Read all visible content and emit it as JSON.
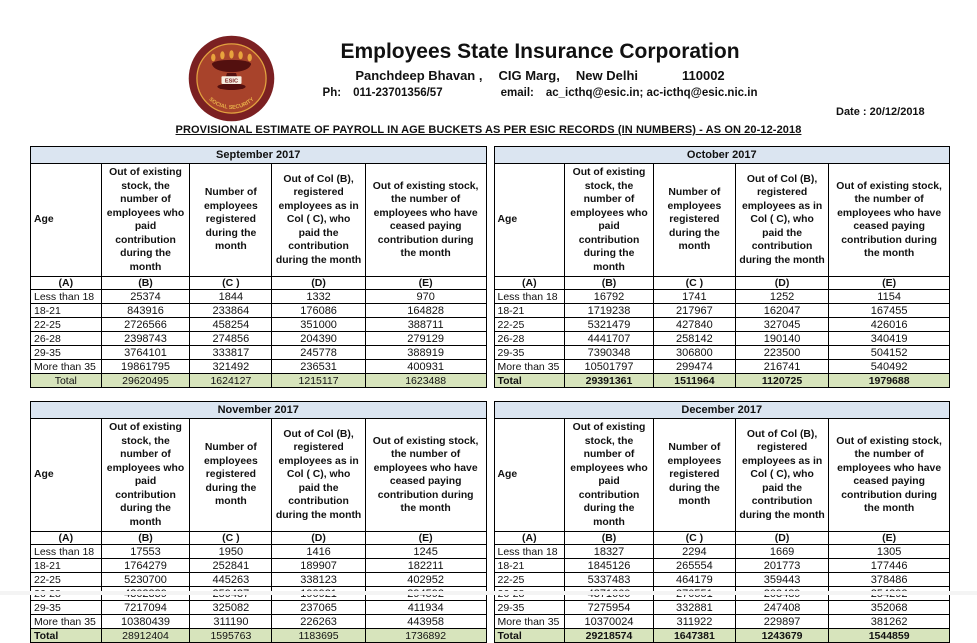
{
  "logo": {
    "label": "ESIC",
    "arc_text": "SOCIAL SECURITY"
  },
  "header": {
    "org_name": "Employees State Insurance Corporation",
    "address_parts": [
      "Panchdeep Bhavan ,",
      "CIG Marg,",
      "New Delhi",
      "110002"
    ],
    "contact_parts": [
      "Ph:",
      "011-23701356/57",
      "email:",
      "ac_icthq@esic.in; ac-icthq@esic.nic.in"
    ],
    "date": "Date : 20/12/2018"
  },
  "title": "PROVISIONAL ESTIMATE OF PAYROLL IN AGE BUCKETS AS PER ESIC RECORDS (IN NUMBERS) - AS ON 20-12-2018",
  "columns": {
    "letters": [
      "(A)",
      "(B)",
      "(C )",
      "(D)",
      "(E)"
    ],
    "headers": [
      "Age",
      "Out of existing stock, the number of employees who paid contribution during the month",
      "Number of employees registered during the month",
      "Out of Col (B), registered employees as in Col ( C), who paid the contribution during the month",
      "Out of existing stock, the number of employees who have ceased paying contribution during the month"
    ]
  },
  "age_buckets": [
    "Less than 18",
    "18-21",
    "22-25",
    "26-28",
    "29-35",
    "More than 35"
  ],
  "total_label": "Total",
  "tables": [
    {
      "month": "September 2017",
      "rows": [
        [
          25374,
          1844,
          1332,
          970
        ],
        [
          843916,
          233864,
          176086,
          164828
        ],
        [
          2726566,
          458254,
          351000,
          388711
        ],
        [
          2398743,
          274856,
          204390,
          279129
        ],
        [
          3764101,
          333817,
          245778,
          388919
        ],
        [
          19861795,
          321492,
          236531,
          400931
        ]
      ],
      "totals": [
        29620495,
        1624127,
        1215117,
        1623488
      ]
    },
    {
      "month": "October 2017",
      "rows": [
        [
          16792,
          1741,
          1252,
          1154
        ],
        [
          1719238,
          217967,
          162047,
          167455
        ],
        [
          5321479,
          427840,
          327045,
          426016
        ],
        [
          4441707,
          258142,
          190140,
          340419
        ],
        [
          7390348,
          306800,
          223500,
          504152
        ],
        [
          10501797,
          299474,
          216741,
          540492
        ]
      ],
      "totals": [
        29391361,
        1511964,
        1120725,
        1979688
      ]
    },
    {
      "month": "November 2017",
      "rows": [
        [
          17553,
          1950,
          1416,
          1245
        ],
        [
          1764279,
          252841,
          189907,
          182211
        ],
        [
          5230700,
          445263,
          338123,
          402952
        ],
        [
          4302339,
          259437,
          190921,
          294592
        ],
        [
          7217094,
          325082,
          237065,
          411934
        ],
        [
          10380439,
          311190,
          226263,
          443958
        ]
      ],
      "totals": [
        28912404,
        1595763,
        1183695,
        1736892
      ]
    },
    {
      "month": "December 2017",
      "rows": [
        [
          18327,
          2294,
          1669,
          1305
        ],
        [
          1845126,
          265554,
          201773,
          177446
        ],
        [
          5337483,
          464179,
          359443,
          378486
        ],
        [
          4371660,
          270551,
          203489,
          254292
        ],
        [
          7275954,
          332881,
          247408,
          352068
        ],
        [
          10370024,
          311922,
          229897,
          381262
        ]
      ],
      "totals": [
        29218574,
        1647381,
        1243679,
        1544859
      ]
    }
  ],
  "colors": {
    "month_header_bg": "#dbe5f1",
    "total_row_bg": "#d7e4bc",
    "logo_maroon": "#7b2022",
    "logo_inner": "#a8432b",
    "logo_gold": "#e2a23f"
  }
}
